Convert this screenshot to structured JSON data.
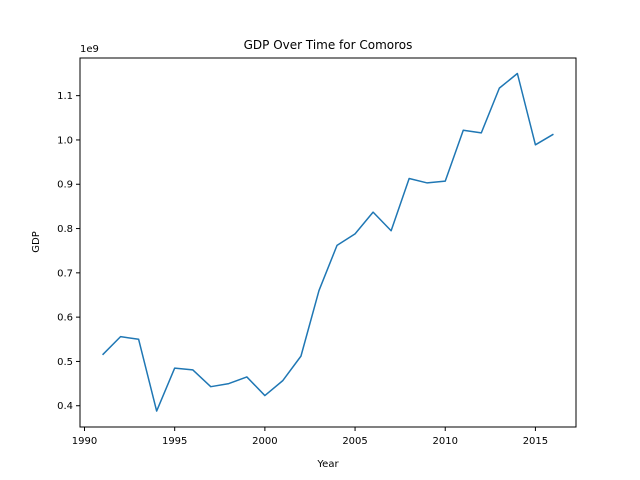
{
  "chart_data": {
    "type": "line",
    "title": "GDP Over Time for Comoros",
    "xlabel": "Year",
    "ylabel": "GDP",
    "y_offset_label": "1e9",
    "xlim": [
      1989.75,
      2017.25
    ],
    "ylim": [
      0.352,
      1.185
    ],
    "x_ticks": [
      1990,
      1995,
      2000,
      2005,
      2010,
      2015
    ],
    "x_tick_labels": [
      "1990",
      "1995",
      "2000",
      "2005",
      "2010",
      "2015"
    ],
    "y_ticks": [
      0.4,
      0.5,
      0.6,
      0.7,
      0.8,
      0.9,
      1.0,
      1.1
    ],
    "y_tick_labels": [
      "0.4",
      "0.5",
      "0.6",
      "0.7",
      "0.8",
      "0.9",
      "1.0",
      "1.1"
    ],
    "grid": false,
    "line_color": "#1f77b4",
    "series": [
      {
        "x": [
          1991,
          1992,
          1993,
          1994,
          1995,
          1996,
          1997,
          1998,
          1999,
          2000,
          2001,
          2002,
          2003,
          2004,
          2005,
          2006,
          2007,
          2008,
          2009,
          2010,
          2011,
          2012,
          2013,
          2014,
          2015,
          2016
        ],
        "values": [
          0.515,
          0.556,
          0.55,
          0.388,
          0.485,
          0.481,
          0.443,
          0.45,
          0.465,
          0.423,
          0.457,
          0.512,
          0.66,
          0.762,
          0.788,
          0.837,
          0.795,
          0.913,
          0.903,
          0.907,
          1.022,
          1.016,
          1.117,
          1.15,
          0.989,
          1.013
        ]
      }
    ]
  }
}
